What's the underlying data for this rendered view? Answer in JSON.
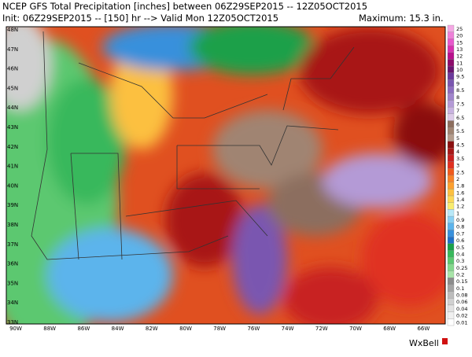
{
  "header": {
    "title": "NCEP GFS Total Precipitation [inches] between 06Z29SEP2015 -- 12Z05OCT2015",
    "init": "Init: 06Z29SEP2015 -- [150] hr --> Valid Mon 12Z05OCT2015",
    "maximum": "Maximum: 15.3 in."
  },
  "colorbar": {
    "labels": [
      "25",
      "20",
      "15",
      "13",
      "12",
      "11",
      "10",
      "9.5",
      "9",
      "8.5",
      "8",
      "7.5",
      "7",
      "6.5",
      "6",
      "5.5",
      "5",
      "4.5",
      "4",
      "3.5",
      "3",
      "2.5",
      "2",
      "1.8",
      "1.6",
      "1.4",
      "1.2",
      "1",
      "0.9",
      "0.8",
      "0.7",
      "0.6",
      "0.5",
      "0.4",
      "0.3",
      "0.25",
      "0.2",
      "0.15",
      "0.1",
      "0.08",
      "0.06",
      "0.04",
      "0.02",
      "0.01"
    ],
    "colors": [
      "#f4a8e4",
      "#ee80d8",
      "#e858cc",
      "#d830b0",
      "#b8108c",
      "#8c0a6a",
      "#6a1470",
      "#6c3a9c",
      "#7a56b0",
      "#8e6cc0",
      "#a084cc",
      "#b49ad6",
      "#c8b2e0",
      "#dccae8",
      "#8c6e5e",
      "#a08472",
      "#b49c8c",
      "#8a1010",
      "#a81818",
      "#c82020",
      "#e03020",
      "#f05a1c",
      "#f88228",
      "#fca030",
      "#fcc040",
      "#fcd858",
      "#f8ec70",
      "#b8e8f8",
      "#88d0f4",
      "#5cb4ec",
      "#3890dc",
      "#2070c8",
      "#1aa04a",
      "#38b85c",
      "#5cc870",
      "#84d88c",
      "#a8e4a8",
      "#8c8c8c",
      "#a4a4a4",
      "#bcbcbc",
      "#d0d0d0",
      "#e2e2e2",
      "#f0f0f0",
      "#ffffff"
    ]
  },
  "lat_labels": [
    "48N",
    "47N",
    "46N",
    "45N",
    "44N",
    "43N",
    "42N",
    "41N",
    "40N",
    "39N",
    "38N",
    "37N",
    "36N",
    "35N",
    "34N",
    "33N"
  ],
  "lon_labels": [
    "90W",
    "88W",
    "86W",
    "84W",
    "82W",
    "80W",
    "78W",
    "76W",
    "74W",
    "72W",
    "70W",
    "68W",
    "66W"
  ],
  "logo": "WxBell"
}
